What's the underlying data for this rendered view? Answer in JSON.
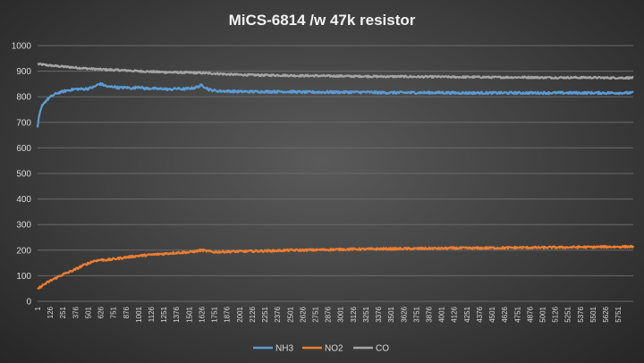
{
  "chart_data": {
    "type": "line",
    "title": "MiCS-6814  /w 47k resistor",
    "xlabel": "",
    "ylabel": "",
    "ylim": [
      0,
      1000
    ],
    "yticks": [
      0,
      100,
      200,
      300,
      400,
      500,
      600,
      700,
      800,
      900,
      1000
    ],
    "xlim": [
      1,
      5900
    ],
    "xticks": [
      1,
      126,
      251,
      376,
      501,
      626,
      751,
      876,
      1001,
      1126,
      1251,
      1376,
      1501,
      1626,
      1751,
      1876,
      2001,
      2126,
      2251,
      2376,
      2501,
      2626,
      2751,
      2876,
      3001,
      3126,
      3251,
      3376,
      3501,
      3626,
      3751,
      3876,
      4001,
      4126,
      4251,
      4376,
      4501,
      4626,
      4751,
      4876,
      5001,
      5126,
      5251,
      5376,
      5501,
      5626,
      5751
    ],
    "grid": true,
    "legend_position": "bottom",
    "series": [
      {
        "name": "NH3",
        "color": "#5b9bd5",
        "x": [
          1,
          20,
          50,
          100,
          150,
          200,
          251,
          300,
          376,
          450,
          501,
          560,
          600,
          626,
          660,
          700,
          751,
          800,
          876,
          950,
          1001,
          1060,
          1126,
          1200,
          1251,
          1300,
          1376,
          1450,
          1501,
          1560,
          1626,
          1660,
          1700,
          1751,
          1800,
          1876,
          2001,
          2126,
          2251,
          2376,
          2501,
          2626,
          2751,
          2876,
          3001,
          3126,
          3251,
          3376,
          3501,
          3626,
          3751,
          3876,
          4001,
          4126,
          4251,
          4376,
          4501,
          4626,
          4751,
          4876,
          5001,
          5126,
          5251,
          5376,
          5501,
          5626,
          5751,
          5900
        ],
        "y": [
          680,
          730,
          770,
          790,
          805,
          815,
          820,
          825,
          830,
          830,
          832,
          838,
          848,
          850,
          845,
          838,
          840,
          835,
          836,
          833,
          840,
          832,
          833,
          830,
          832,
          828,
          832,
          830,
          832,
          835,
          845,
          838,
          828,
          824,
          822,
          822,
          820,
          820,
          820,
          820,
          820,
          818,
          818,
          818,
          818,
          818,
          818,
          816,
          816,
          816,
          816,
          816,
          816,
          815,
          815,
          815,
          815,
          815,
          815,
          815,
          815,
          815,
          815,
          815,
          815,
          815,
          815,
          815
        ]
      },
      {
        "name": "NO2",
        "color": "#ed7d31",
        "x": [
          1,
          50,
          126,
          200,
          251,
          300,
          376,
          450,
          501,
          560,
          626,
          700,
          751,
          876,
          1001,
          1126,
          1251,
          1376,
          1501,
          1560,
          1626,
          1700,
          1751,
          1876,
          2001,
          2126,
          2251,
          2376,
          2501,
          2626,
          2751,
          2876,
          3001,
          3126,
          3251,
          3376,
          3501,
          3626,
          3751,
          3876,
          4001,
          4126,
          4251,
          4376,
          4501,
          4626,
          4751,
          4876,
          5001,
          5126,
          5251,
          5376,
          5501,
          5626,
          5751,
          5900
        ],
        "y": [
          48,
          62,
          80,
          95,
          105,
          112,
          125,
          140,
          148,
          158,
          162,
          162,
          165,
          172,
          178,
          182,
          186,
          190,
          192,
          195,
          200,
          195,
          193,
          194,
          195,
          196,
          197,
          198,
          200,
          200,
          201,
          202,
          203,
          204,
          204,
          205,
          205,
          206,
          206,
          207,
          207,
          208,
          208,
          208,
          209,
          209,
          210,
          210,
          210,
          211,
          211,
          212,
          212,
          213,
          213,
          214
        ]
      },
      {
        "name": "CO",
        "color": "#a5a5a5",
        "x": [
          1,
          126,
          251,
          376,
          501,
          626,
          751,
          876,
          1001,
          1126,
          1251,
          1376,
          1501,
          1626,
          1751,
          1876,
          2001,
          2126,
          2251,
          2376,
          2501,
          2626,
          2751,
          2876,
          3001,
          3126,
          3251,
          3376,
          3501,
          3626,
          3751,
          3876,
          4001,
          4126,
          4251,
          4376,
          4501,
          4626,
          4751,
          4876,
          5001,
          5126,
          5251,
          5376,
          5501,
          5626,
          5751,
          5900
        ],
        "y": [
          928,
          922,
          918,
          914,
          910,
          907,
          905,
          903,
          900,
          898,
          896,
          895,
          894,
          893,
          891,
          888,
          886,
          885,
          884,
          884,
          883,
          882,
          882,
          881,
          881,
          880,
          880,
          879,
          879,
          879,
          878,
          878,
          878,
          877,
          877,
          877,
          876,
          876,
          876,
          876,
          875,
          875,
          875,
          875,
          875,
          874,
          874,
          874
        ]
      }
    ]
  }
}
